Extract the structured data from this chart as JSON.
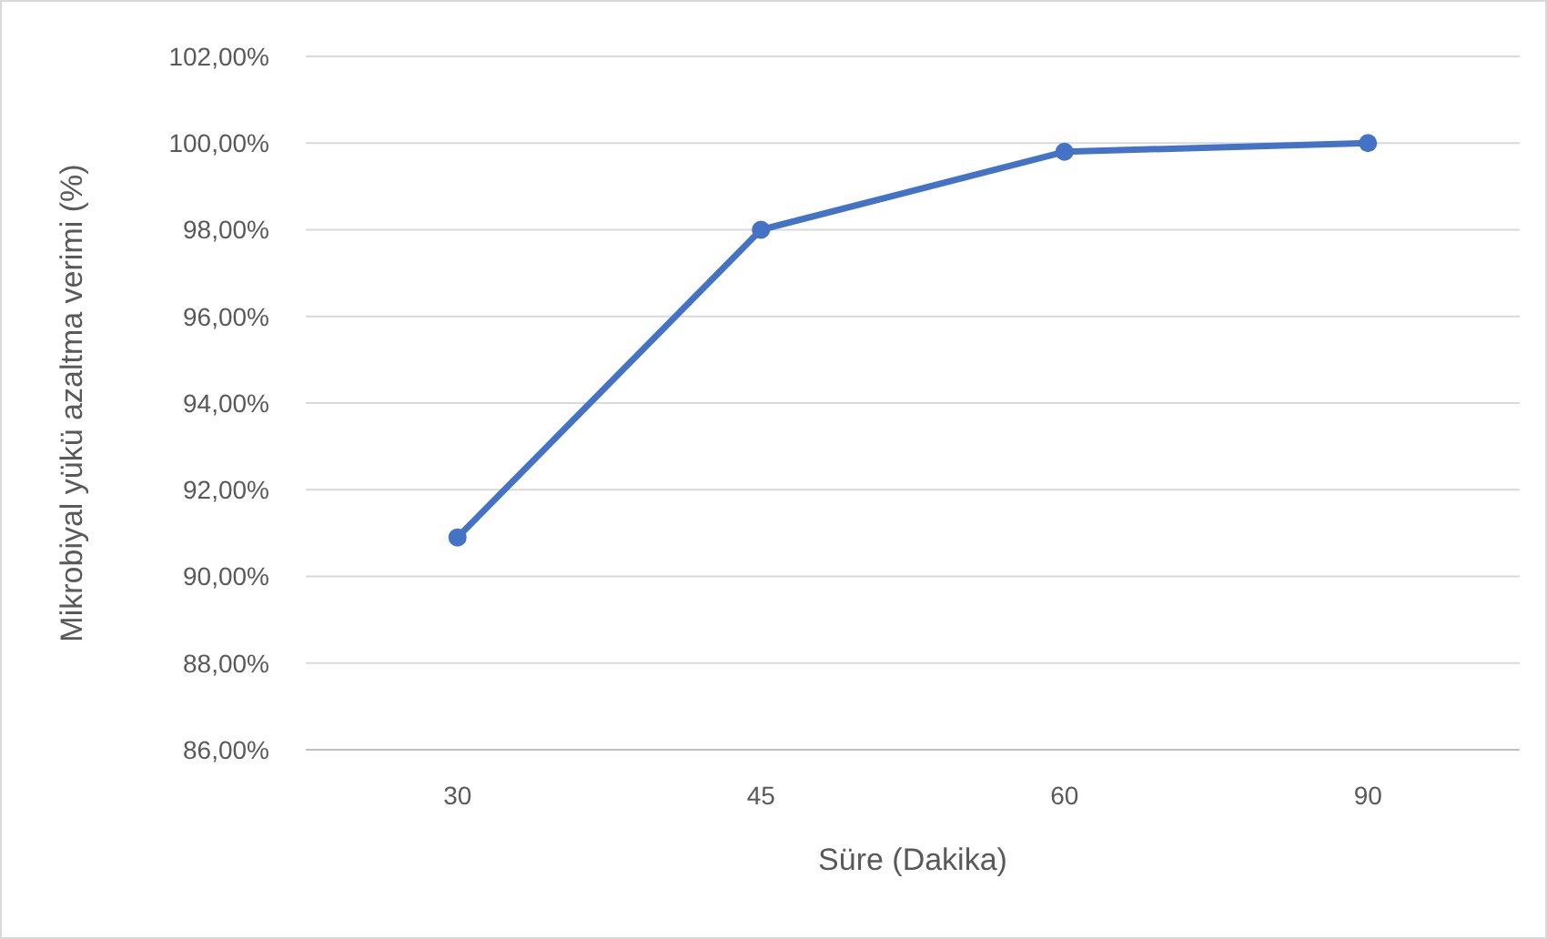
{
  "chart_data": {
    "type": "line",
    "xlabel": "Süre (Dakika)",
    "ylabel": "Mikrobiyal yükü azaltma verimi (%)",
    "categories": [
      "30",
      "45",
      "60",
      "90"
    ],
    "series": [
      {
        "color": "#4472c4",
        "values": [
          90.9,
          98.0,
          99.8,
          100.0
        ]
      }
    ],
    "ylim": [
      86,
      102
    ],
    "yticks": [
      {
        "value": 86,
        "label": "86,00%"
      },
      {
        "value": 88,
        "label": "88,00%"
      },
      {
        "value": 90,
        "label": "90,00%"
      },
      {
        "value": 92,
        "label": "92,00%"
      },
      {
        "value": 94,
        "label": "94,00%"
      },
      {
        "value": 96,
        "label": "96,00%"
      },
      {
        "value": 98,
        "label": "98,00%"
      },
      {
        "value": 100,
        "label": "100,00%"
      },
      {
        "value": 102,
        "label": "102,00%"
      }
    ],
    "grid": "y",
    "marker": "circle",
    "line_style": "solid"
  }
}
